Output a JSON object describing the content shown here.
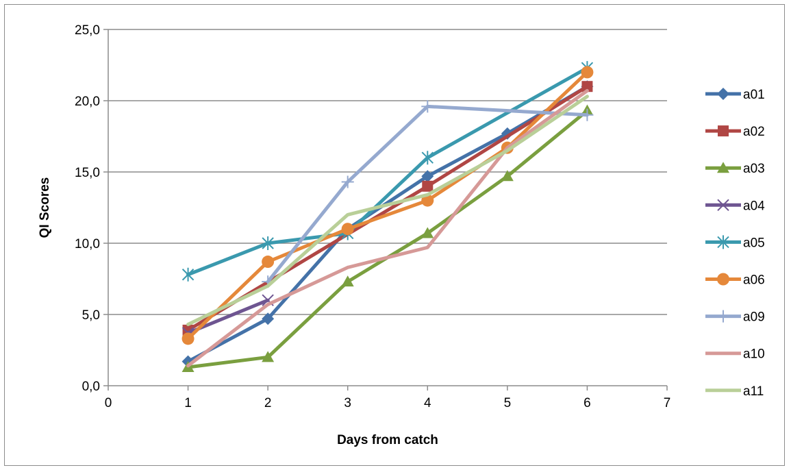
{
  "chart_data": {
    "type": "line",
    "title": "",
    "xlabel": "Days from catch",
    "ylabel": "QI Scores",
    "xlim": [
      0,
      7
    ],
    "ylim": [
      0,
      25
    ],
    "x_ticks": [
      "0",
      "1",
      "2",
      "3",
      "4",
      "5",
      "6",
      "7"
    ],
    "y_ticks": [
      "0,0",
      "5,0",
      "10,0",
      "15,0",
      "20,0",
      "25,0"
    ],
    "grid": "horizontal",
    "legend_position": "right",
    "series": [
      {
        "name": "a01",
        "color": "#4472A8",
        "marker": "diamond",
        "x": [
          1,
          2,
          3,
          4,
          5,
          6
        ],
        "values": [
          1.7,
          4.7,
          11.0,
          14.7,
          17.7,
          21.0
        ]
      },
      {
        "name": "a02",
        "color": "#B04644",
        "marker": "square",
        "x": [
          1,
          2,
          3,
          4,
          5,
          6
        ],
        "values": [
          3.9,
          null,
          null,
          14.0,
          null,
          21.0
        ]
      },
      {
        "name": "a03",
        "color": "#7A9F3F",
        "marker": "triangle",
        "x": [
          1,
          2,
          3,
          4,
          5,
          6
        ],
        "values": [
          1.3,
          2.0,
          7.3,
          10.7,
          14.7,
          19.3
        ]
      },
      {
        "name": "a04",
        "color": "#6E5591",
        "marker": "x",
        "x": [
          1,
          2,
          3,
          4,
          5,
          6
        ],
        "values": [
          3.7,
          6.0,
          null,
          null,
          null,
          null
        ]
      },
      {
        "name": "a05",
        "color": "#3A99AE",
        "marker": "star",
        "x": [
          1,
          2,
          3,
          4,
          5,
          6
        ],
        "values": [
          7.8,
          10.0,
          10.7,
          16.0,
          null,
          22.3
        ]
      },
      {
        "name": "a06",
        "color": "#E5883A",
        "marker": "circle",
        "x": [
          1,
          2,
          3,
          4,
          5,
          6
        ],
        "values": [
          3.3,
          8.7,
          11.0,
          13.0,
          16.7,
          22.0
        ]
      },
      {
        "name": "a09",
        "color": "#95A9CF",
        "marker": "plus",
        "x": [
          1,
          2,
          3,
          4,
          5,
          6
        ],
        "values": [
          null,
          7.3,
          14.3,
          19.6,
          null,
          19.0
        ]
      },
      {
        "name": "a10",
        "color": "#D69997",
        "marker": "none",
        "x": [
          1,
          2,
          3,
          4,
          5,
          6
        ],
        "values": [
          1.4,
          5.7,
          8.3,
          9.7,
          16.7,
          20.7
        ]
      },
      {
        "name": "a11",
        "color": "#B9CF98",
        "marker": "none",
        "x": [
          1,
          2,
          3,
          4,
          5,
          6
        ],
        "values": [
          4.3,
          7.0,
          12.0,
          13.4,
          16.5,
          20.3
        ]
      }
    ]
  }
}
